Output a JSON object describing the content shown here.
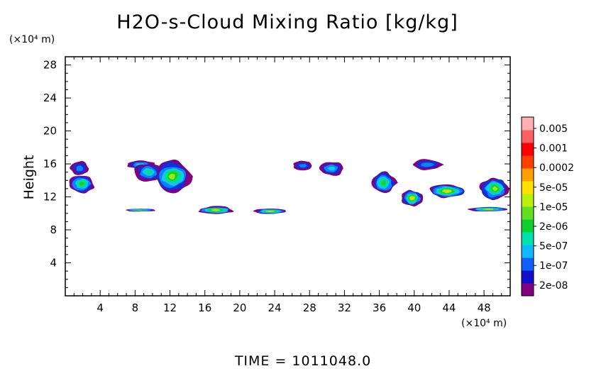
{
  "chart_data": {
    "type": "heatmap",
    "title": "H2O-s-Cloud Mixing Ratio [kg/kg]",
    "ylabel": "Height",
    "y_unit": "(×10⁴ m)",
    "x_unit": "(×10⁴ m)",
    "x_ticks": [
      "4",
      "8",
      "12",
      "16",
      "20",
      "24",
      "28",
      "32",
      "36",
      "40",
      "44",
      "48"
    ],
    "x_tick_values": [
      4,
      8,
      12,
      16,
      20,
      24,
      28,
      32,
      36,
      40,
      44,
      48
    ],
    "y_ticks": [
      "4",
      "8",
      "12",
      "16",
      "20",
      "24",
      "28"
    ],
    "y_tick_values": [
      4,
      8,
      12,
      16,
      20,
      24,
      28
    ],
    "xlim": [
      0,
      51
    ],
    "ylim": [
      0,
      29
    ],
    "time_label": "TIME = 1011048.0",
    "colorbar": {
      "labels": [
        "0.005",
        "0.001",
        "0.0002",
        "5e-05",
        "1e-05",
        "2e-06",
        "5e-07",
        "1e-07",
        "2e-08"
      ],
      "colors": [
        "#800080",
        "#1010c8",
        "#1060ff",
        "#10b8ff",
        "#00e0b0",
        "#10d030",
        "#60e020",
        "#b8f010",
        "#ffe000",
        "#ffa000",
        "#ff4000",
        "#ff0000",
        "#ff6060",
        "#ffb0b0"
      ]
    },
    "cloud_regions": [
      {
        "x": [
          0.5,
          2.8
        ],
        "y": [
          14.5,
          16.4
        ],
        "level": "1e-07"
      },
      {
        "x": [
          0.3,
          3.5
        ],
        "y": [
          12.4,
          14.8
        ],
        "level": "1e-05"
      },
      {
        "x": [
          6.8,
          10.5
        ],
        "y": [
          15.3,
          16.5
        ],
        "level": "5e-07"
      },
      {
        "x": [
          7.8,
          11.3
        ],
        "y": [
          13.8,
          16.2
        ],
        "level": "2e-06"
      },
      {
        "x": [
          10.0,
          14.5
        ],
        "y": [
          12.5,
          16.5
        ],
        "level": "5e-05"
      },
      {
        "x": [
          6.5,
          10.5
        ],
        "y": [
          10.2,
          10.6
        ],
        "level": "5e-05"
      },
      {
        "x": [
          15.0,
          19.5
        ],
        "y": [
          9.9,
          10.9
        ],
        "level": "0.0002"
      },
      {
        "x": [
          21.5,
          25.5
        ],
        "y": [
          9.9,
          10.6
        ],
        "level": "0.0002"
      },
      {
        "x": [
          26.0,
          28.5
        ],
        "y": [
          15.2,
          16.4
        ],
        "level": "1e-07"
      },
      {
        "x": [
          29.0,
          32.0
        ],
        "y": [
          14.5,
          16.4
        ],
        "level": "5e-07"
      },
      {
        "x": [
          35.0,
          38.0
        ],
        "y": [
          12.3,
          15.1
        ],
        "level": "1e-05"
      },
      {
        "x": [
          38.5,
          41.0
        ],
        "y": [
          10.8,
          12.9
        ],
        "level": "0.0002"
      },
      {
        "x": [
          39.5,
          43.5
        ],
        "y": [
          15.2,
          16.6
        ],
        "level": "1e-07"
      },
      {
        "x": [
          41.5,
          46.0
        ],
        "y": [
          11.8,
          13.6
        ],
        "level": "0.0002"
      },
      {
        "x": [
          47.5,
          51.0
        ],
        "y": [
          11.5,
          14.5
        ],
        "level": "5e-05"
      },
      {
        "x": [
          46.0,
          51.0
        ],
        "y": [
          10.2,
          10.8
        ],
        "level": "0.0002"
      }
    ]
  }
}
